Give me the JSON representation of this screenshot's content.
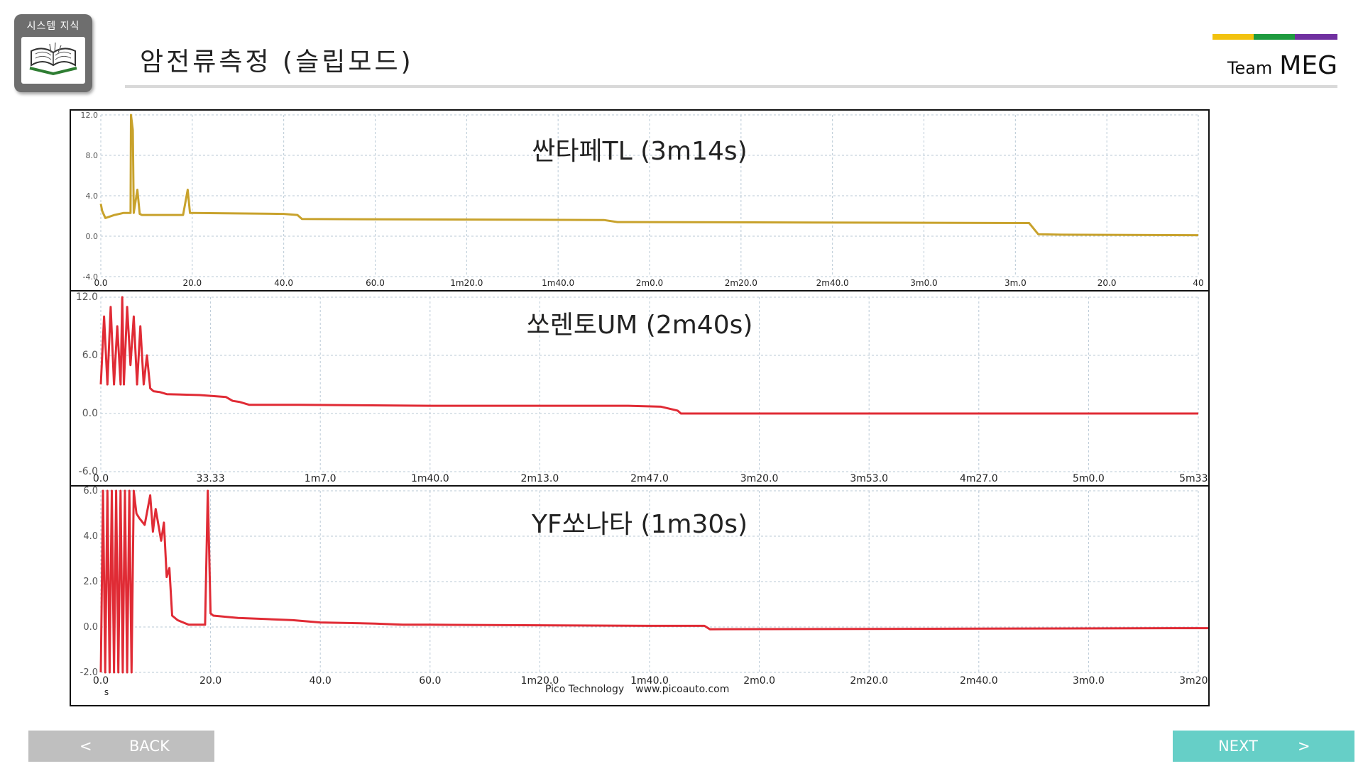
{
  "header": {
    "badge_label": "시스템 지식",
    "title": "암전류측정 (슬립모드)",
    "team_small": "Team",
    "team_name": "MEG",
    "brand_colors": [
      "#f2c20f",
      "#1f9b3f",
      "#7030a0"
    ]
  },
  "chart_data": [
    {
      "type": "line",
      "title": "싼타페TL (3m14s)",
      "color": "#c8a22c",
      "x_ticks": [
        "0.0",
        "20.0",
        "40.0",
        "60.0",
        "1m20.0",
        "1m40.0",
        "2m0.0",
        "2m20.0",
        "2m40.0",
        "3m0.0",
        "3m.0",
        "20.0",
        "40"
      ],
      "y_ticks": [
        "12.0",
        "8.0",
        "4.0",
        "0.0",
        "-4.0"
      ],
      "ylim": [
        -4,
        12
      ],
      "series": [
        {
          "x": [
            0,
            0.3,
            1,
            3,
            5,
            6.5,
            6.6,
            7,
            7.2,
            8,
            8.5,
            9,
            10,
            18,
            19,
            19.5,
            20,
            40,
            43,
            44,
            110,
            113,
            115,
            203,
            205,
            210,
            240
          ],
          "y": [
            3.2,
            2.5,
            1.8,
            2.1,
            2.3,
            2.3,
            12,
            10.5,
            2.3,
            4.6,
            2.2,
            2.1,
            2.1,
            2.1,
            4.6,
            2.3,
            2.3,
            2.2,
            2.1,
            1.7,
            1.6,
            1.4,
            1.4,
            1.3,
            0.2,
            0.15,
            0.1
          ]
        }
      ]
    },
    {
      "type": "line",
      "title": "쏘렌토UM (2m40s)",
      "color": "#e02b35",
      "x_ticks": [
        "0.0",
        "33.33",
        "1m7.0",
        "1m40.0",
        "2m13.0",
        "2m47.0",
        "3m20.0",
        "3m53.0",
        "4m27.0",
        "5m0.0",
        "5m33.0"
      ],
      "y_ticks": [
        "12.0",
        "6.0",
        "0.0",
        "-6.0"
      ],
      "ylim": [
        -6,
        12
      ],
      "series": [
        {
          "x": [
            0,
            1,
            2,
            3,
            4,
            5,
            6,
            6.5,
            7,
            8,
            9,
            10,
            11,
            12,
            13,
            14,
            15,
            16,
            18,
            20,
            30,
            38,
            40,
            42,
            45,
            60,
            100,
            160,
            170,
            175,
            176,
            200,
            333
          ],
          "y": [
            3,
            10,
            3,
            11,
            3,
            9,
            3,
            12,
            3,
            11,
            5,
            10,
            3,
            9,
            3,
            6,
            2.6,
            2.3,
            2.2,
            2,
            1.9,
            1.7,
            1.3,
            1.2,
            0.9,
            0.9,
            0.8,
            0.8,
            0.7,
            0.3,
            0,
            0,
            0
          ]
        }
      ]
    },
    {
      "type": "line",
      "title": "YF쏘나타 (1m30s)",
      "color": "#e02b35",
      "x_ticks": [
        "0.0",
        "20.0",
        "40.0",
        "60.0",
        "1m20.0",
        "1m40.0",
        "2m0.0",
        "2m20.0",
        "2m40.0",
        "3m0.0",
        "3m20.0"
      ],
      "y_ticks": [
        "6.0",
        "4.0",
        "2.0",
        "0.0",
        "-2.0"
      ],
      "y_unit": "s",
      "ylim": [
        -2,
        6
      ],
      "series": [
        {
          "x": [
            0,
            0.4,
            0.8,
            1.2,
            1.6,
            2,
            2.4,
            2.8,
            3.2,
            3.6,
            4,
            4.4,
            4.8,
            5.2,
            5.6,
            6,
            6.5,
            7,
            8,
            9,
            9.5,
            10,
            11,
            11.5,
            12,
            12.5,
            13,
            14,
            16,
            19,
            19.5,
            20,
            20.5,
            25,
            30,
            35,
            40,
            50,
            55,
            60,
            100,
            110,
            111,
            200,
            202
          ],
          "y": [
            -2,
            6,
            -2,
            6,
            -2,
            6,
            -2,
            6,
            -2,
            6,
            -2,
            6,
            -2,
            6,
            -2,
            6,
            5,
            4.8,
            4.5,
            5.8,
            4.2,
            5.2,
            3.8,
            4.6,
            2.2,
            2.6,
            0.5,
            0.3,
            0.1,
            0.1,
            6,
            0.6,
            0.5,
            0.4,
            0.35,
            0.3,
            0.2,
            0.15,
            0.1,
            0.1,
            0.05,
            0.05,
            -0.1,
            -0.05,
            -0.05
          ]
        }
      ]
    }
  ],
  "footer": {
    "brand": "Pico Technology",
    "url": "www.picoauto.com"
  },
  "nav": {
    "back_arrow": "<",
    "back_label": "BACK",
    "next_label": "NEXT",
    "next_arrow": ">"
  }
}
